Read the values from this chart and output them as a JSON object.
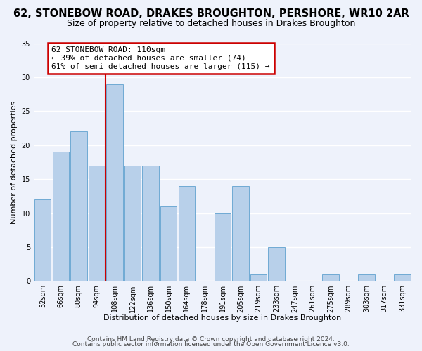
{
  "title": "62, STONEBOW ROAD, DRAKES BROUGHTON, PERSHORE, WR10 2AR",
  "subtitle": "Size of property relative to detached houses in Drakes Broughton",
  "xlabel": "Distribution of detached houses by size in Drakes Broughton",
  "ylabel": "Number of detached properties",
  "bin_labels": [
    "52sqm",
    "66sqm",
    "80sqm",
    "94sqm",
    "108sqm",
    "122sqm",
    "136sqm",
    "150sqm",
    "164sqm",
    "178sqm",
    "191sqm",
    "205sqm",
    "219sqm",
    "233sqm",
    "247sqm",
    "261sqm",
    "275sqm",
    "289sqm",
    "303sqm",
    "317sqm",
    "331sqm"
  ],
  "bar_heights": [
    12,
    19,
    22,
    17,
    29,
    17,
    17,
    11,
    14,
    0,
    10,
    14,
    1,
    5,
    0,
    0,
    1,
    0,
    1,
    0,
    1
  ],
  "bar_color": "#b8d0ea",
  "bar_edge_color": "#6faad4",
  "vline_color": "#cc0000",
  "annotation_text": "62 STONEBOW ROAD: 110sqm\n← 39% of detached houses are smaller (74)\n61% of semi-detached houses are larger (115) →",
  "annotation_box_color": "#ffffff",
  "annotation_box_edge": "#cc0000",
  "ylim": [
    0,
    35
  ],
  "yticks": [
    0,
    5,
    10,
    15,
    20,
    25,
    30,
    35
  ],
  "footer1": "Contains HM Land Registry data © Crown copyright and database right 2024.",
  "footer2": "Contains public sector information licensed under the Open Government Licence v3.0.",
  "background_color": "#eef2fb",
  "grid_color": "#ffffff",
  "title_fontsize": 10.5,
  "subtitle_fontsize": 9,
  "axis_label_fontsize": 8,
  "tick_fontsize": 7,
  "footer_fontsize": 6.5,
  "annotation_fontsize": 8
}
